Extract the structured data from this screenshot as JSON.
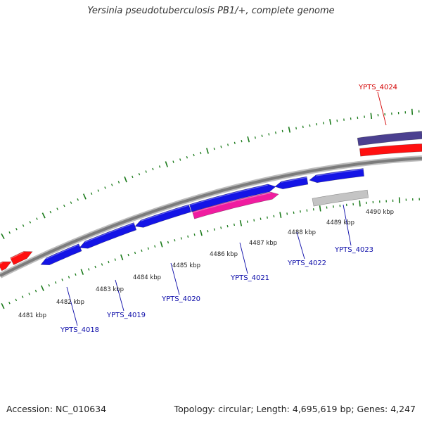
{
  "title": "Yersinia pseudotuberculosis PB1/+, complete genome",
  "footer": {
    "accession": "Accession: NC_010634",
    "summary": "Topology: circular; Length: 4,695,619 bp; Genes: 4,247"
  },
  "colors": {
    "forward_cds": "#1414e6",
    "reverse_cds": "#ff1010",
    "pseudogene": "#f01ca0",
    "rna_feature": "#4b4090",
    "unknown_feature": "#c4c4c4",
    "backbone": "#8c8c8c",
    "tick": "#1a7a1a",
    "label_blue": "#0a0aa8",
    "label_red": "#d40000"
  },
  "scale": {
    "unit": "kbp",
    "labels": [
      "4481 kbp",
      "4482 kbp",
      "4483 kbp",
      "4484 kbp",
      "4485 kbp",
      "4486 kbp",
      "4487 kbp",
      "4488 kbp",
      "4489 kbp",
      "4490 kbp"
    ]
  },
  "gene_labels": [
    "YPTS_4018",
    "YPTS_4019",
    "YPTS_4020",
    "YPTS_4021",
    "YPTS_4022",
    "YPTS_4023",
    "YPTS_4024"
  ]
}
